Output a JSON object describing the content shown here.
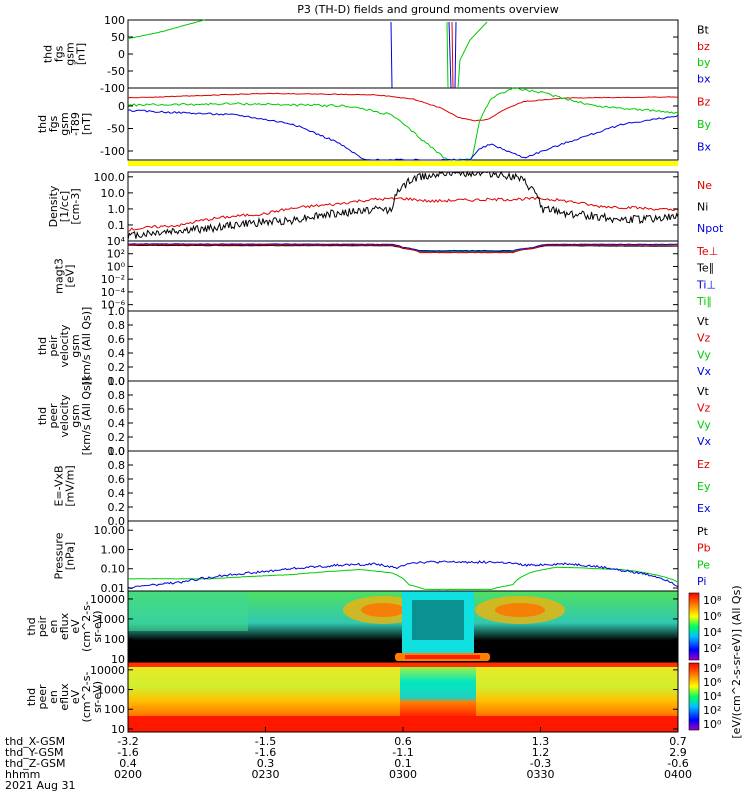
{
  "chart_data": {
    "type": "line",
    "title": "P3 (TH-D) fields and ground moments overview",
    "colors": {
      "black": "#000000",
      "red": "#e00000",
      "green": "#00cc00",
      "blue": "#0000e0",
      "yellow": "#ffff00"
    },
    "panels": [
      {
        "id": "fgs",
        "ylabel": [
          "thd",
          "fgs",
          "gsm",
          "[nT]"
        ],
        "yscale": "linear",
        "ylim": [
          -100,
          100
        ],
        "yticks": [
          "100",
          "50",
          "0",
          "-50",
          "-100"
        ],
        "ytick_values": [
          100,
          50,
          0,
          -50,
          -100
        ],
        "legend": [
          {
            "name": "Bt",
            "color": "black"
          },
          {
            "name": "bz",
            "color": "red"
          },
          {
            "name": "by",
            "color": "green"
          },
          {
            "name": "bx",
            "color": "blue"
          }
        ]
      },
      {
        "id": "fgs_dipole",
        "ylabel": [
          "thd",
          "fgs",
          "gsm",
          "-T89",
          "[nT]"
        ],
        "yscale": "linear",
        "ylim": [
          -120,
          40
        ],
        "yticks": [
          "0",
          "-50",
          "-100"
        ],
        "ytick_values": [
          0,
          -50,
          -100
        ],
        "legend": [
          {
            "name": "Bz",
            "color": "red"
          },
          {
            "name": "By",
            "color": "green"
          },
          {
            "name": "Bx",
            "color": "blue"
          }
        ]
      },
      {
        "id": "density",
        "ylabel": [
          "Density",
          "[1/cc]",
          "[cm-3]"
        ],
        "yscale": "log",
        "ylim": [
          0.01,
          200
        ],
        "yticks": [
          "100.0",
          "10.0",
          "1.0",
          "0.1"
        ],
        "ytick_values": [
          100,
          10,
          1,
          0.1
        ],
        "legend": [
          {
            "name": "Ne",
            "color": "red"
          },
          {
            "name": "Ni",
            "color": "black"
          },
          {
            "name": "Npot",
            "color": "blue"
          }
        ]
      },
      {
        "id": "temperature",
        "ylabel": [
          "magt3",
          "[eV]"
        ],
        "yscale": "log",
        "ylim": [
          1e-07,
          10000
        ],
        "yticks": [
          "10⁴",
          "10²",
          "10⁰",
          "10⁻²",
          "10⁻⁴",
          "10⁻⁶"
        ],
        "ytick_values": [
          10000,
          100,
          1,
          0.01,
          0.0001,
          1e-06
        ],
        "legend": [
          {
            "name": "Te⊥",
            "color": "red"
          },
          {
            "name": "Te∥",
            "color": "black"
          },
          {
            "name": "Ti⊥",
            "color": "blue"
          },
          {
            "name": "Ti∥",
            "color": "green"
          }
        ]
      },
      {
        "id": "ion_velocity",
        "ylabel": [
          "thd",
          "peir",
          "velocity",
          "gsm",
          "[km/s (All Qs)]"
        ],
        "yscale": "linear",
        "ylim": [
          0,
          1
        ],
        "yticks": [
          "1.0",
          "0.8",
          "0.6",
          "0.4",
          "0.2",
          "0.0"
        ],
        "ytick_values": [
          1,
          0.8,
          0.6,
          0.4,
          0.2,
          0
        ],
        "legend": [
          {
            "name": "Vt",
            "color": "black"
          },
          {
            "name": "Vz",
            "color": "red"
          },
          {
            "name": "Vy",
            "color": "green"
          },
          {
            "name": "Vx",
            "color": "blue"
          }
        ]
      },
      {
        "id": "electron_velocity",
        "ylabel": [
          "thd",
          "peer",
          "velocity",
          "gsm",
          "[km/s (All Qs)]"
        ],
        "yscale": "linear",
        "ylim": [
          0,
          1
        ],
        "yticks": [
          "1.0",
          "0.8",
          "0.6",
          "0.4",
          "0.2",
          "0.0"
        ],
        "ytick_values": [
          1,
          0.8,
          0.6,
          0.4,
          0.2,
          0
        ],
        "legend": [
          {
            "name": "Vt",
            "color": "black"
          },
          {
            "name": "Vz",
            "color": "red"
          },
          {
            "name": "Vy",
            "color": "green"
          },
          {
            "name": "Vx",
            "color": "blue"
          }
        ]
      },
      {
        "id": "efield",
        "ylabel": [
          "E=-VxB",
          "[mV/m]"
        ],
        "yscale": "linear",
        "ylim": [
          0,
          1
        ],
        "yticks": [
          "1.0",
          "0.8",
          "0.6",
          "0.4",
          "0.2",
          "0.0"
        ],
        "ytick_values": [
          1,
          0.8,
          0.6,
          0.4,
          0.2,
          0
        ],
        "legend": [
          {
            "name": "Ez",
            "color": "red"
          },
          {
            "name": "Ey",
            "color": "green"
          },
          {
            "name": "Ex",
            "color": "blue"
          }
        ]
      },
      {
        "id": "pressure",
        "ylabel": [
          "Pressure",
          "[nPa]"
        ],
        "yscale": "log",
        "ylim": [
          0.007,
          30
        ],
        "yticks": [
          "10.00",
          "1.00",
          "0.10",
          "0.01"
        ],
        "ytick_values": [
          10,
          1,
          0.1,
          0.01
        ],
        "legend": [
          {
            "name": "Pt",
            "color": "black"
          },
          {
            "name": "Pb",
            "color": "red"
          },
          {
            "name": "Pe",
            "color": "green"
          },
          {
            "name": "Pi",
            "color": "blue"
          }
        ]
      },
      {
        "id": "ion_spec",
        "ylabel": [
          "thd",
          "peir",
          "en",
          "eflux",
          "eV",
          "(cm^2-s-",
          "sr-eV)"
        ],
        "yscale": "log",
        "ylim": [
          7,
          25000
        ],
        "type": "spectrogram",
        "yticks": [
          "10000",
          "1000",
          "100",
          "10"
        ],
        "ytick_values": [
          10000,
          1000,
          100,
          10
        ]
      },
      {
        "id": "electron_spec",
        "ylabel": [
          "thd",
          "peer",
          "en",
          "eflux",
          "eV",
          "(cm^2-s-",
          "sr-eV)"
        ],
        "yscale": "log",
        "ylim": [
          7,
          25000
        ],
        "type": "spectrogram",
        "yticks": [
          "10000",
          "1000",
          "100",
          "10"
        ],
        "ytick_values": [
          10000,
          1000,
          100,
          10
        ]
      }
    ],
    "x_axis": {
      "time_range": [
        "0200",
        "0400"
      ],
      "row_labels": [
        "thd_X-GSM",
        "thd_Y-GSM",
        "thd_Z-GSM",
        "hhmm",
        "2021 Aug 31"
      ],
      "ticks": [
        {
          "frac": 0.0,
          "x": "-3.2",
          "y": "-1.6",
          "z": "0.4",
          "hhmm": "0200"
        },
        {
          "frac": 0.25,
          "x": "-1.5",
          "y": "-1.6",
          "z": "0.3",
          "hhmm": "0230"
        },
        {
          "frac": 0.5,
          "x": "0.6",
          "y": "-1.1",
          "z": "0.1",
          "hhmm": "0300"
        },
        {
          "frac": 0.75,
          "x": "1.3",
          "y": "1.2",
          "z": "-0.3",
          "hhmm": "0330"
        },
        {
          "frac": 1.0,
          "x": "0.7",
          "y": "2.9",
          "z": "-0.6",
          "hhmm": "0400"
        }
      ]
    },
    "colorbar": {
      "label": "[eV/(cm^2-s-sr-eV)] (All Qs)",
      "upper_ticks": [
        "10⁸",
        "10⁶",
        "10⁴",
        "10²"
      ],
      "lower_ticks": [
        "10⁸",
        "10⁶",
        "10⁴",
        "10²",
        "10⁰"
      ]
    },
    "series_shapes": {
      "fgs_green_early": [
        [
          0.0,
          45
        ],
        [
          0.06,
          65
        ],
        [
          0.12,
          92
        ],
        [
          0.14,
          100
        ]
      ],
      "bz_red": [
        [
          0.0,
          18
        ],
        [
          0.25,
          28
        ],
        [
          0.45,
          25
        ],
        [
          0.52,
          15
        ],
        [
          0.57,
          -5
        ],
        [
          0.6,
          -25
        ],
        [
          0.63,
          -33
        ],
        [
          0.655,
          -30
        ],
        [
          0.68,
          -10
        ],
        [
          0.72,
          10
        ],
        [
          0.8,
          18
        ],
        [
          1.0,
          20
        ]
      ],
      "by_green": [
        [
          0.0,
          2
        ],
        [
          0.2,
          5
        ],
        [
          0.4,
          0
        ],
        [
          0.48,
          -20
        ],
        [
          0.53,
          -70
        ],
        [
          0.56,
          -100
        ],
        [
          0.58,
          -120
        ],
        [
          0.625,
          -120
        ],
        [
          0.64,
          -30
        ],
        [
          0.66,
          18
        ],
        [
          0.7,
          40
        ],
        [
          0.75,
          30
        ],
        [
          0.85,
          0
        ],
        [
          1.0,
          -15
        ]
      ],
      "bx_blue": [
        [
          0.0,
          -10
        ],
        [
          0.2,
          -20
        ],
        [
          0.3,
          -40
        ],
        [
          0.38,
          -80
        ],
        [
          0.43,
          -120
        ],
        [
          0.62,
          -120
        ],
        [
          0.64,
          -95
        ],
        [
          0.66,
          -85
        ],
        [
          0.72,
          -115
        ],
        [
          0.8,
          -80
        ],
        [
          0.9,
          -40
        ],
        [
          1.0,
          -22
        ]
      ],
      "ne_red": [
        [
          0.0,
          0.05
        ],
        [
          0.1,
          0.1
        ],
        [
          0.25,
          0.5
        ],
        [
          0.38,
          2.0
        ],
        [
          0.45,
          4.0
        ],
        [
          0.5,
          4.5
        ],
        [
          0.55,
          3.0
        ],
        [
          0.6,
          3.5
        ],
        [
          0.7,
          4.0
        ],
        [
          0.75,
          4.5
        ],
        [
          0.85,
          1.5
        ],
        [
          1.0,
          0.8
        ]
      ],
      "ni_black": [
        [
          0.0,
          0.02
        ],
        [
          0.15,
          0.06
        ],
        [
          0.3,
          0.2
        ],
        [
          0.4,
          0.6
        ],
        [
          0.46,
          1.0
        ],
        [
          0.48,
          0.8
        ],
        [
          0.5,
          20
        ],
        [
          0.53,
          100
        ],
        [
          0.58,
          180
        ],
        [
          0.65,
          180
        ],
        [
          0.7,
          100
        ],
        [
          0.73,
          20
        ],
        [
          0.75,
          1.0
        ],
        [
          0.8,
          0.5
        ],
        [
          0.9,
          0.2
        ],
        [
          1.0,
          0.3
        ]
      ],
      "te_black": [
        [
          0.0,
          2000
        ],
        [
          0.48,
          1800
        ],
        [
          0.5,
          700
        ],
        [
          0.53,
          200
        ],
        [
          0.7,
          200
        ],
        [
          0.74,
          700
        ],
        [
          0.76,
          1800
        ],
        [
          1.0,
          1500
        ]
      ],
      "ti_blue": [
        [
          0.0,
          3500
        ],
        [
          0.48,
          3000
        ],
        [
          0.5,
          1000
        ],
        [
          0.53,
          300
        ],
        [
          0.7,
          300
        ],
        [
          0.74,
          1000
        ],
        [
          0.76,
          3000
        ],
        [
          1.0,
          3000
        ]
      ],
      "ti_green": [
        [
          0.0,
          3000
        ],
        [
          0.48,
          2800
        ],
        [
          0.5,
          900
        ],
        [
          0.53,
          250
        ],
        [
          0.7,
          250
        ],
        [
          0.74,
          900
        ],
        [
          0.76,
          2800
        ],
        [
          1.0,
          2500
        ]
      ],
      "te_red": [
        [
          0.0,
          2500
        ],
        [
          0.48,
          2200
        ],
        [
          0.5,
          800
        ],
        [
          0.53,
          150
        ],
        [
          0.7,
          150
        ],
        [
          0.74,
          800
        ],
        [
          0.76,
          2200
        ],
        [
          1.0,
          1800
        ]
      ],
      "pb_green": [
        [
          0.0,
          0.03
        ],
        [
          0.15,
          0.03
        ],
        [
          0.3,
          0.05
        ],
        [
          0.42,
          0.09
        ],
        [
          0.48,
          0.06
        ],
        [
          0.51,
          0.015
        ],
        [
          0.54,
          0.0085
        ],
        [
          0.66,
          0.0085
        ],
        [
          0.7,
          0.015
        ],
        [
          0.73,
          0.06
        ],
        [
          0.78,
          0.12
        ],
        [
          0.9,
          0.09
        ],
        [
          1.0,
          0.02
        ]
      ],
      "pi_blue": [
        [
          0.0,
          0.01
        ],
        [
          0.1,
          0.02
        ],
        [
          0.25,
          0.07
        ],
        [
          0.38,
          0.15
        ],
        [
          0.45,
          0.18
        ],
        [
          0.49,
          0.1
        ],
        [
          0.51,
          0.2
        ],
        [
          0.54,
          0.22
        ],
        [
          0.66,
          0.22
        ],
        [
          0.69,
          0.2
        ],
        [
          0.72,
          0.15
        ],
        [
          0.8,
          0.18
        ],
        [
          0.9,
          0.08
        ],
        [
          1.0,
          0.012
        ]
      ]
    }
  }
}
